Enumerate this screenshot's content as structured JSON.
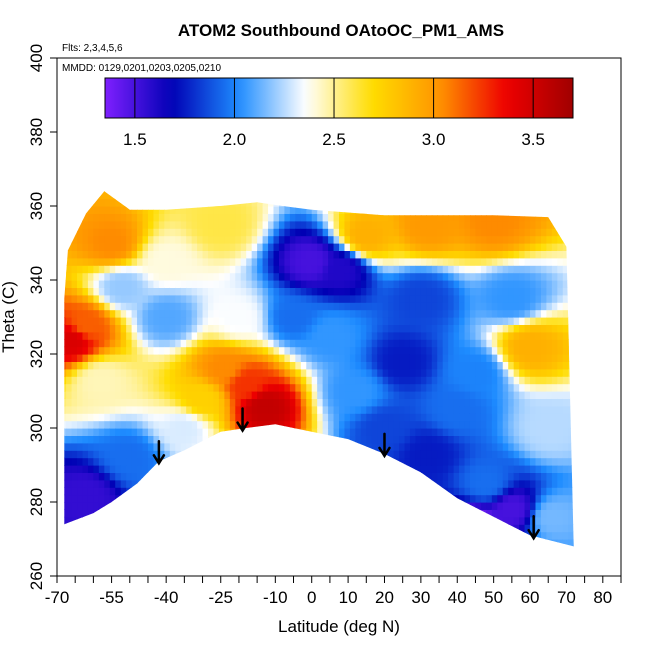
{
  "chart_data": {
    "type": "heatmap",
    "title": "ATOM2 Southbound OAtoOC_PM1_AMS",
    "annotations": {
      "flights": "Flts: 2,3,4,5,6",
      "dates": "MMDD: 0129,0201,0203,0205,0210"
    },
    "xlabel": "Latitude (deg N)",
    "ylabel": "Theta (C)",
    "xlim": [
      -70,
      85
    ],
    "ylim": [
      260,
      400
    ],
    "x_ticks": [
      -70,
      -55,
      -40,
      -25,
      -10,
      0,
      10,
      20,
      30,
      40,
      50,
      60,
      70,
      80
    ],
    "x_minor_ticks": [
      -65,
      -60,
      -50,
      -45,
      -35,
      -30,
      -20,
      -15,
      -5,
      5,
      15,
      25,
      35,
      45,
      55,
      65,
      75,
      85
    ],
    "y_ticks": [
      260,
      280,
      300,
      320,
      340,
      360,
      380,
      400
    ],
    "grid": false,
    "colorbar": {
      "placement": "top",
      "range": [
        1.35,
        3.7
      ],
      "ticks": [
        1.5,
        2.0,
        2.5,
        3.0,
        3.5
      ],
      "tick_labels": [
        "1.5",
        "2.0",
        "2.5",
        "3.0",
        "3.5"
      ],
      "colors": [
        "#7f20ff",
        "#0000b4",
        "#1e8cff",
        "#ffffff",
        "#ffdd00",
        "#ff9400",
        "#ee0000",
        "#a00000"
      ]
    },
    "arrows_lat": [
      -42,
      -19,
      20,
      61
    ],
    "domain_top": [
      [
        -68,
        335
      ],
      [
        -67,
        348
      ],
      [
        -62,
        358
      ],
      [
        -57,
        364
      ],
      [
        -50,
        359
      ],
      [
        -40,
        359
      ],
      [
        -25,
        360
      ],
      [
        -15,
        361
      ],
      [
        -8,
        360
      ],
      [
        0,
        359
      ],
      [
        20,
        357.5
      ],
      [
        50,
        357.5
      ],
      [
        65,
        357
      ],
      [
        70,
        349
      ]
    ],
    "domain_bottom": [
      [
        -68,
        274
      ],
      [
        -60,
        277
      ],
      [
        -55,
        280
      ],
      [
        -48,
        285
      ],
      [
        -42,
        291
      ],
      [
        -35,
        294
      ],
      [
        -25,
        299
      ],
      [
        -18,
        300
      ],
      [
        -10,
        301
      ],
      [
        0,
        299
      ],
      [
        10,
        297
      ],
      [
        20,
        293
      ],
      [
        30,
        288
      ],
      [
        40,
        281
      ],
      [
        50,
        276
      ],
      [
        60,
        271
      ],
      [
        72,
        268
      ]
    ],
    "features": [
      {
        "lat": -66,
        "theta": 324,
        "value": 3.45
      },
      {
        "lat": -62,
        "theta": 328,
        "value": 3.15
      },
      {
        "lat": -58,
        "theta": 313,
        "value": 2.45
      },
      {
        "lat": -55,
        "theta": 350,
        "value": 3.05
      },
      {
        "lat": -52,
        "theta": 338,
        "value": 2.2
      },
      {
        "lat": -50,
        "theta": 292,
        "value": 1.95
      },
      {
        "lat": -62,
        "theta": 282,
        "value": 1.55
      },
      {
        "lat": -40,
        "theta": 330,
        "value": 2.1
      },
      {
        "lat": -35,
        "theta": 300,
        "value": 2.3
      },
      {
        "lat": -30,
        "theta": 308,
        "value": 2.75
      },
      {
        "lat": -24,
        "theta": 316,
        "value": 3.05
      },
      {
        "lat": -18,
        "theta": 312,
        "value": 3.25
      },
      {
        "lat": -13,
        "theta": 306,
        "value": 3.55
      },
      {
        "lat": -20,
        "theta": 330,
        "value": 2.35
      },
      {
        "lat": -5,
        "theta": 330,
        "value": 1.95
      },
      {
        "lat": 0,
        "theta": 345,
        "value": 1.5
      },
      {
        "lat": 8,
        "theta": 343,
        "value": 1.6
      },
      {
        "lat": 5,
        "theta": 325,
        "value": 2.05
      },
      {
        "lat": 12,
        "theta": 310,
        "value": 2.05
      },
      {
        "lat": 15,
        "theta": 352,
        "value": 2.9
      },
      {
        "lat": -25,
        "theta": 355,
        "value": 2.6
      },
      {
        "lat": -40,
        "theta": 345,
        "value": 2.4
      },
      {
        "lat": 32,
        "theta": 355,
        "value": 3.0
      },
      {
        "lat": 50,
        "theta": 356,
        "value": 3.05
      },
      {
        "lat": 30,
        "theta": 335,
        "value": 1.85
      },
      {
        "lat": 25,
        "theta": 318,
        "value": 1.75
      },
      {
        "lat": 20,
        "theta": 300,
        "value": 1.85
      },
      {
        "lat": 32,
        "theta": 293,
        "value": 1.75
      },
      {
        "lat": 45,
        "theta": 315,
        "value": 2.0
      },
      {
        "lat": 55,
        "theta": 335,
        "value": 2.05
      },
      {
        "lat": 60,
        "theta": 322,
        "value": 2.9
      },
      {
        "lat": 65,
        "theta": 300,
        "value": 2.25
      },
      {
        "lat": 48,
        "theta": 285,
        "value": 1.95
      },
      {
        "lat": 55,
        "theta": 278,
        "value": 1.5
      },
      {
        "lat": 45,
        "theta": 274,
        "value": 1.4
      },
      {
        "lat": 66,
        "theta": 276,
        "value": 2.15
      },
      {
        "lat": 40,
        "theta": 305,
        "value": 1.95
      }
    ]
  }
}
